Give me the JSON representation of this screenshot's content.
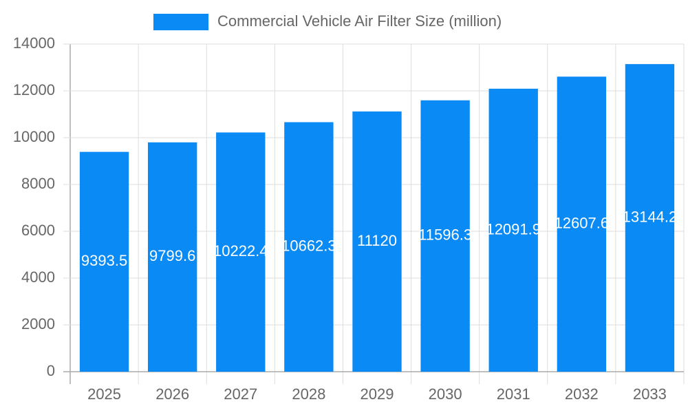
{
  "chart_data": {
    "type": "bar",
    "categories": [
      "2025",
      "2026",
      "2027",
      "2028",
      "2029",
      "2030",
      "2031",
      "2032",
      "2033"
    ],
    "series": [
      {
        "name": "Commercial Vehicle Air Filter Size (million)",
        "color": "#0a8af5",
        "values": [
          9393.5,
          9799.6,
          10222.4,
          10662.3,
          11120,
          11596.3,
          12091.9,
          12607.6,
          13144.2
        ]
      }
    ],
    "ylim": [
      0,
      14000
    ],
    "yticks": [
      0,
      2000,
      4000,
      6000,
      8000,
      10000,
      12000,
      14000
    ],
    "grid": true,
    "legend": "top"
  }
}
